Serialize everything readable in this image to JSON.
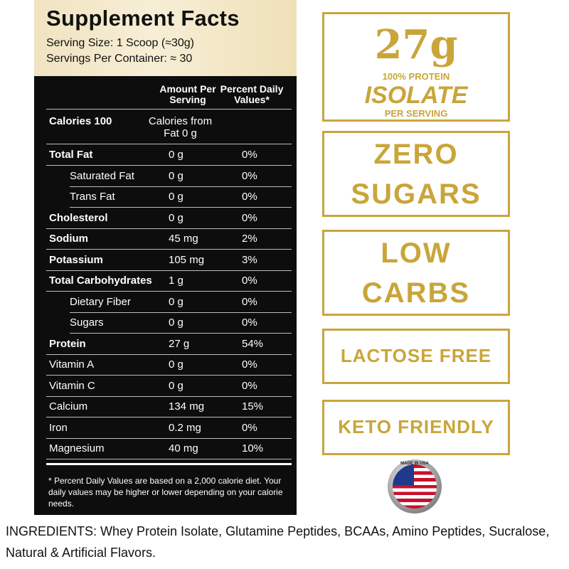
{
  "facts": {
    "title": "Supplement Facts",
    "serving_size": "Serving Size: 1 Scoop (≈30g)",
    "servings_per_container": "Servings Per Container:  ≈ 30",
    "col_amount": "Amount Per Serving",
    "col_percent": "Percent Daily Values*",
    "calories_label": "Calories 100",
    "calories_from_fat": "Calories from Fat  0 g",
    "rows": [
      {
        "label": "Total Fat",
        "amount": "0 g",
        "percent": "0%"
      },
      {
        "label": "Saturated Fat",
        "amount": "0 g",
        "percent": "0%"
      },
      {
        "label": "Trans Fat",
        "amount": "0 g",
        "percent": "0%"
      },
      {
        "label": "Cholesterol",
        "amount": "0 g",
        "percent": "0%"
      },
      {
        "label": "Sodium",
        "amount": "45 mg",
        "percent": "2%"
      },
      {
        "label": "Potassium",
        "amount": "105 mg",
        "percent": "3%"
      },
      {
        "label": "Total Carbohydrates",
        "amount": "1 g",
        "percent": "0%"
      },
      {
        "label": "Dietary Fiber",
        "amount": "0 g",
        "percent": "0%"
      },
      {
        "label": "Sugars",
        "amount": "0 g",
        "percent": "0%"
      },
      {
        "label": "Protein",
        "amount": "27 g",
        "percent": "54%"
      },
      {
        "label": "Vitamin A",
        "amount": "0 g",
        "percent": "0%"
      },
      {
        "label": "Vitamin C",
        "amount": "0 g",
        "percent": "0%"
      },
      {
        "label": "Calcium",
        "amount": "134 mg",
        "percent": "15%"
      },
      {
        "label": "Iron",
        "amount": "0.2 mg",
        "percent": "0%"
      },
      {
        "label": "Magnesium",
        "amount": "40 mg",
        "percent": "10%"
      }
    ],
    "footnote": "* Percent Daily Values are based on a 2,000 calorie diet. Your daily values may be  higher or lower depending on your calorie needs."
  },
  "badges": {
    "protein_amount": "27g",
    "protein_line1": "100% PROTEIN",
    "protein_line2": "ISOLATE",
    "protein_line3": "PER SERVING",
    "zero_line1": "ZERO",
    "zero_line2": "SUGARS",
    "low_line1": "LOW",
    "low_line2": "CARBS",
    "lactose": "LACTOSE FREE",
    "keto": "KETO FRIENDLY"
  },
  "seal": {
    "text": "MADE IN USA",
    "icon": "usa-flag-icon"
  },
  "ingredients": "INGREDIENTS: Whey Protein Isolate, Glutamine Peptides, BCAAs, Amino Peptides, Sucralose, Natural & Artificial Flavors.",
  "colors": {
    "gold": "#c9a53a",
    "panel": "#0d0d0d",
    "header": "#f1e3c1"
  }
}
